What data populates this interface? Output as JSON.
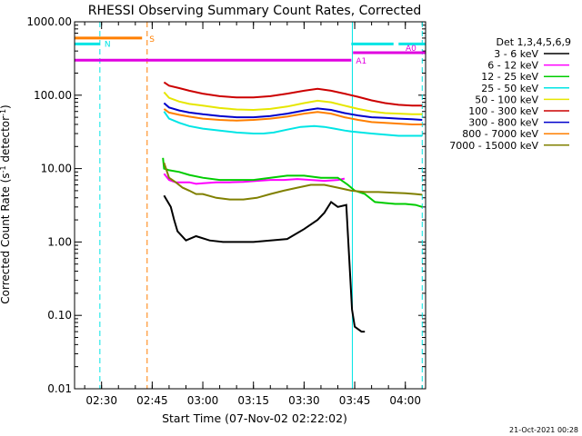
{
  "chart_data": {
    "type": "line",
    "title": "RHESSI Observing Summary Count Rates, Corrected",
    "xlabel": "Start Time (07-Nov-02 02:22:02)",
    "ylabel_prefix": "Corrected Count Rate (s",
    "ylabel_sup1": "-1",
    "ylabel_middle": " detector",
    "ylabel_sup2": "-1",
    "ylabel_suffix": ")",
    "yscale": "log",
    "xlim": [
      142,
      246
    ],
    "ylim": [
      0.01,
      1000
    ],
    "x_unit": "minutes after 00:00 UT",
    "x_ticks": [
      {
        "value": 150,
        "label": "02:30"
      },
      {
        "value": 165,
        "label": "02:45"
      },
      {
        "value": 180,
        "label": "03:00"
      },
      {
        "value": 195,
        "label": "03:15"
      },
      {
        "value": 210,
        "label": "03:30"
      },
      {
        "value": 225,
        "label": "03:45"
      },
      {
        "value": 240,
        "label": "04:00"
      }
    ],
    "y_ticks": [
      {
        "value": 1000,
        "label": "1000.00"
      },
      {
        "value": 100,
        "label": "100.00"
      },
      {
        "value": 10,
        "label": "10.00"
      },
      {
        "value": 1,
        "label": "1.00"
      },
      {
        "value": 0.1,
        "label": "0.10"
      },
      {
        "value": 0.01,
        "label": "0.01"
      }
    ],
    "legend_title": "Det 1,3,4,5,6,9",
    "legend_position": "right",
    "series": [
      {
        "name": "3 - 6 keV",
        "color": "#000000",
        "x": [
          168.5,
          170.5,
          171.5,
          172.5,
          175,
          178,
          182,
          186,
          190,
          195,
          200,
          205,
          210,
          214,
          216,
          218,
          220,
          222.5,
          224.2,
          225,
          227,
          228
        ],
        "y": [
          4.3,
          3.0,
          2.0,
          1.4,
          1.05,
          1.2,
          1.05,
          1.0,
          1.0,
          1.0,
          1.05,
          1.1,
          1.5,
          2.0,
          2.5,
          3.5,
          3.0,
          3.2,
          0.12,
          0.07,
          0.06,
          0.06
        ]
      },
      {
        "name": "6 - 12 keV",
        "color": "#ff00ff",
        "x": [
          168.5,
          170,
          172,
          174,
          176,
          178,
          180,
          184,
          188,
          192,
          196,
          200,
          204,
          208,
          212,
          216,
          220,
          222
        ],
        "y": [
          8.5,
          7.0,
          6.5,
          6.5,
          6.5,
          6.2,
          6.3,
          6.5,
          6.5,
          6.6,
          6.8,
          7.0,
          7.0,
          7.2,
          7.0,
          6.8,
          7.0,
          7.3
        ]
      },
      {
        "name": "12 - 25 keV",
        "color": "#00cc00",
        "x": [
          168.2,
          168.5,
          170,
          173,
          176,
          180,
          185,
          190,
          195,
          200,
          205,
          210,
          215,
          220,
          223,
          225,
          228,
          231,
          234,
          237,
          240,
          243,
          245
        ],
        "y": [
          14,
          10,
          9.5,
          9.0,
          8.2,
          7.5,
          7.0,
          7.0,
          7.0,
          7.5,
          8.0,
          8.0,
          7.5,
          7.5,
          6.0,
          5.0,
          4.5,
          3.5,
          3.4,
          3.3,
          3.3,
          3.2,
          3.0
        ]
      },
      {
        "name": "25 - 50 keV",
        "color": "#00e5e5",
        "x": [
          168.5,
          170,
          173,
          176,
          180,
          185,
          190,
          195,
          198,
          201,
          205,
          209,
          213,
          216,
          219,
          222,
          224,
          227,
          230,
          234,
          238,
          242,
          245
        ],
        "y": [
          60,
          48,
          42,
          38,
          35,
          33,
          31,
          30,
          30,
          31,
          34,
          37,
          38,
          37,
          35,
          33,
          32,
          31,
          30,
          29,
          28,
          28,
          28
        ]
      },
      {
        "name": "50 - 100 keV",
        "color": "#e6e600",
        "x": [
          168.5,
          170,
          173,
          176,
          180,
          185,
          190,
          195,
          200,
          205,
          210,
          214,
          218,
          222,
          226,
          230,
          234,
          238,
          242,
          245
        ],
        "y": [
          110,
          92,
          82,
          76,
          72,
          67,
          64,
          63,
          65,
          70,
          78,
          84,
          80,
          72,
          65,
          60,
          57,
          56,
          55,
          55
        ]
      },
      {
        "name": "100 - 300 keV",
        "color": "#cc0000",
        "x": [
          168.5,
          170,
          173,
          176,
          180,
          185,
          190,
          195,
          200,
          205,
          210,
          214,
          218,
          222,
          226,
          230,
          234,
          238,
          242,
          245
        ],
        "y": [
          150,
          135,
          125,
          115,
          105,
          97,
          93,
          93,
          97,
          105,
          115,
          122,
          115,
          105,
          95,
          85,
          78,
          74,
          72,
          72
        ]
      },
      {
        "name": "300 - 800 keV",
        "color": "#0000cc",
        "x": [
          168.5,
          170,
          173,
          176,
          180,
          185,
          190,
          195,
          200,
          205,
          210,
          214,
          218,
          222,
          226,
          230,
          234,
          238,
          242,
          245
        ],
        "y": [
          78,
          68,
          62,
          58,
          55,
          52,
          50,
          50,
          52,
          56,
          62,
          66,
          63,
          57,
          53,
          50,
          49,
          48,
          47,
          46
        ]
      },
      {
        "name": "800 - 7000 keV",
        "color": "#ff7f00",
        "x": [
          168.5,
          170,
          173,
          176,
          180,
          185,
          190,
          195,
          200,
          205,
          210,
          214,
          218,
          222,
          226,
          230,
          234,
          238,
          242,
          245
        ],
        "y": [
          65,
          58,
          54,
          51,
          48,
          46,
          45,
          46,
          48,
          51,
          56,
          59,
          56,
          50,
          46,
          43,
          42,
          41,
          40,
          40
        ]
      },
      {
        "name": "7000 - 15000 keV",
        "color": "#808000",
        "x": [
          168.5,
          170,
          172,
          174,
          176,
          178,
          180,
          184,
          188,
          192,
          196,
          200,
          204,
          208,
          212,
          216,
          220,
          224,
          228,
          232,
          236,
          240,
          243,
          245
        ],
        "y": [
          12,
          7.5,
          6.5,
          5.5,
          5.0,
          4.5,
          4.5,
          4.0,
          3.8,
          3.8,
          4.0,
          4.5,
          5.0,
          5.5,
          6.0,
          6.0,
          5.5,
          5.0,
          4.8,
          4.8,
          4.7,
          4.6,
          4.5,
          4.4
        ]
      }
    ],
    "flag_bars": [
      {
        "label": "S",
        "color": "#ff7f00",
        "x_start": 142,
        "x_end": 162,
        "y": 600
      },
      {
        "label": "N",
        "color": "#00e5e5",
        "x_start": 142,
        "x_end": 149.5,
        "y": 500
      },
      {
        "label": "N",
        "color": "#00e5e5",
        "x_start": 224,
        "x_end": 236.5,
        "y": 500
      },
      {
        "label": "N",
        "color": "#00e5e5",
        "x_start": 238,
        "x_end": 246,
        "y": 500
      },
      {
        "label": "A0",
        "color": "#e000e0",
        "x_start": 224.5,
        "x_end": 246,
        "y": 380
      },
      {
        "label": "A1",
        "color": "#e000e0",
        "x_start": 142,
        "x_end": 224,
        "y": 300
      }
    ],
    "vertical_markers": [
      {
        "x": 149.5,
        "color": "#00e5e5",
        "style": "dashed"
      },
      {
        "x": 163.5,
        "color": "#ff7f00",
        "style": "dashed"
      },
      {
        "x": 224.3,
        "color": "#00e5e5",
        "style": "solid"
      },
      {
        "x": 245.0,
        "color": "#00e5e5",
        "style": "dashed"
      }
    ]
  },
  "footer": {
    "timestamp": "21-Oct-2021 00:28"
  }
}
